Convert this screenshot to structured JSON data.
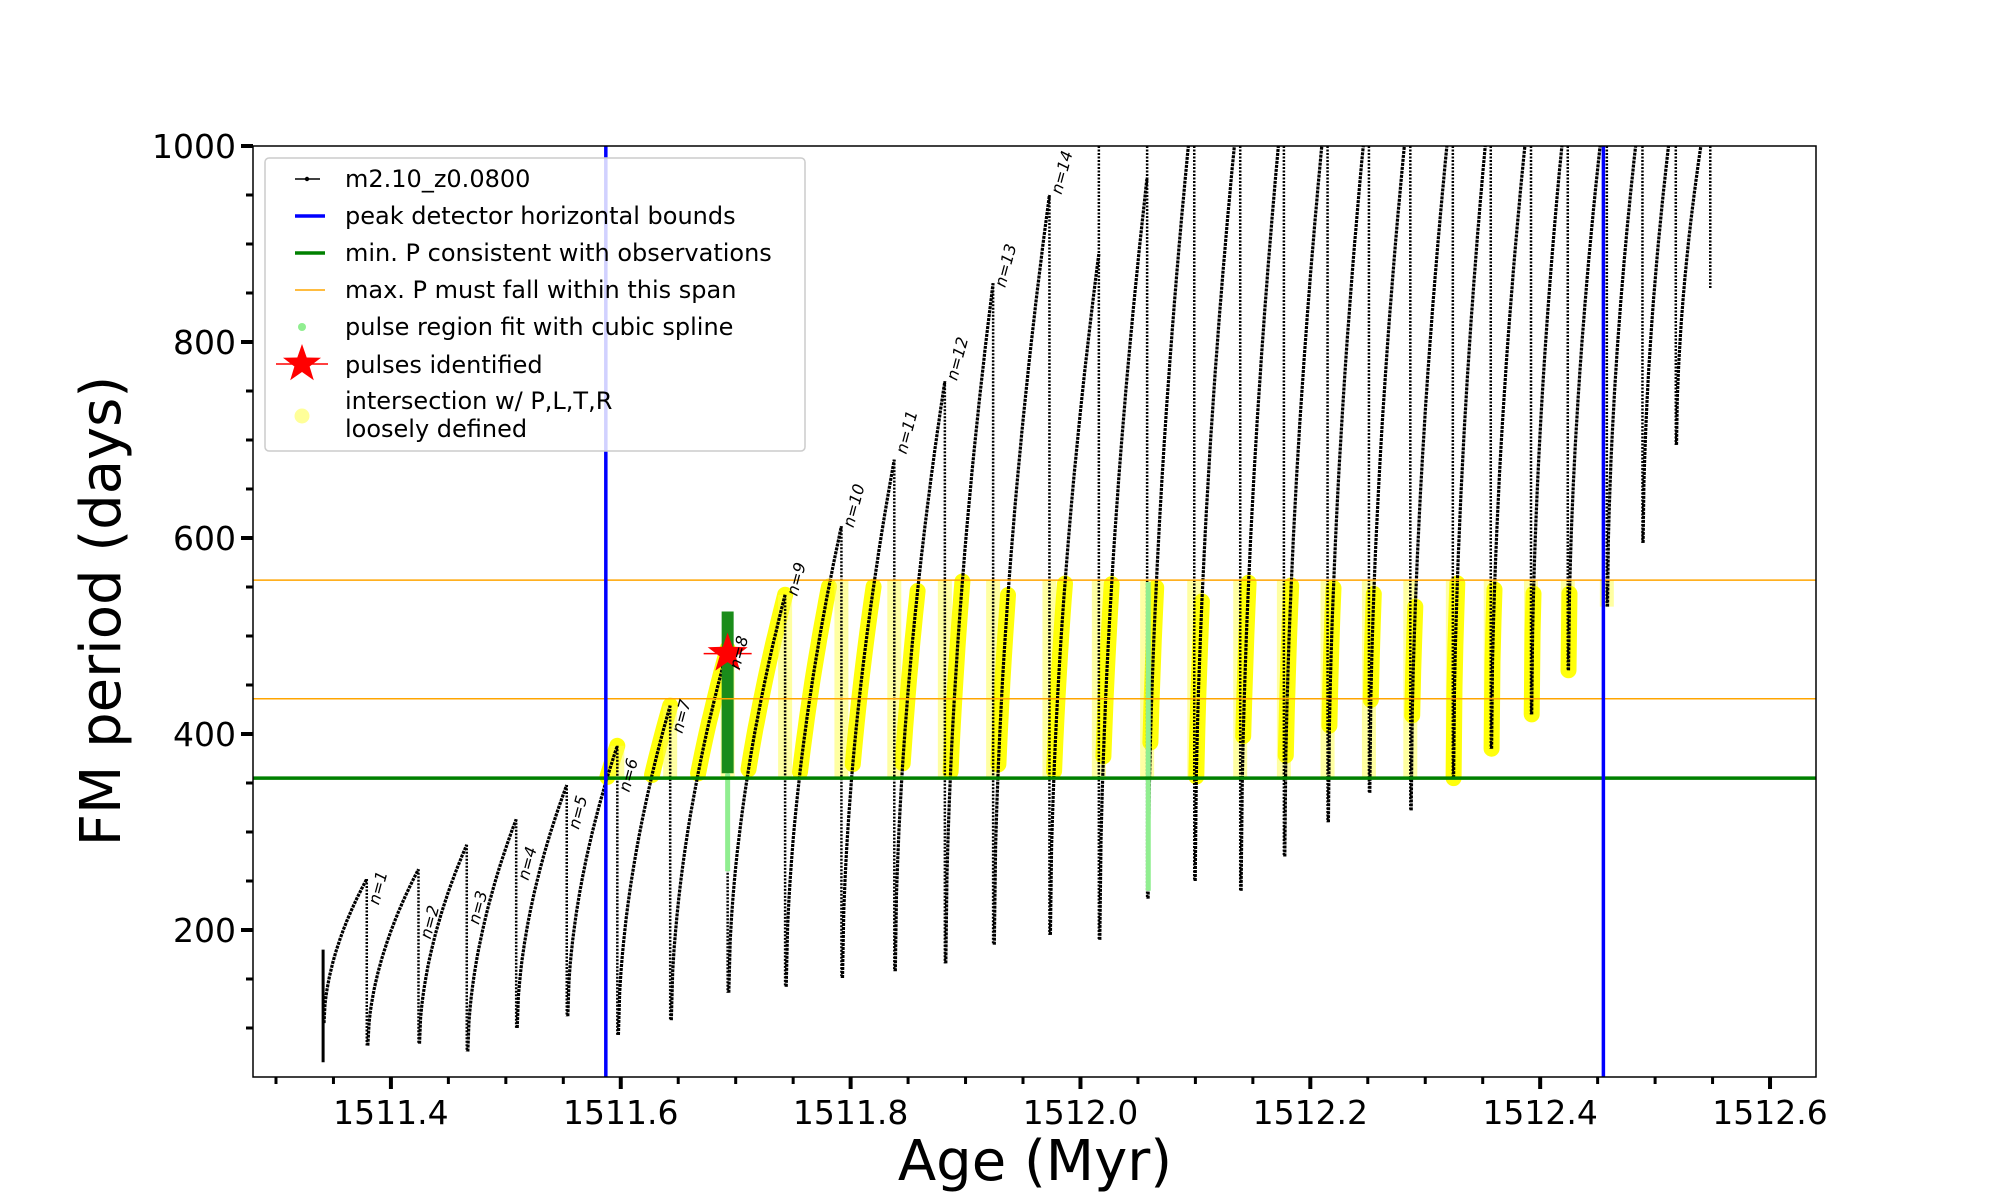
{
  "chart_data": {
    "type": "line",
    "xlabel": "Age (Myr)",
    "ylabel": "FM period (days)",
    "xlim": [
      1511.28,
      1512.64
    ],
    "ylim": [
      50,
      1000
    ],
    "x_ticks": [
      1511.4,
      1511.6,
      1511.8,
      1512.0,
      1512.2,
      1512.4,
      1512.6
    ],
    "x_tick_labels": [
      "1511.4",
      "1511.6",
      "1511.8",
      "1512.0",
      "1512.2",
      "1512.4",
      "1512.6"
    ],
    "y_ticks": [
      200,
      400,
      600,
      800,
      1000
    ],
    "y_tick_labels": [
      "200",
      "400",
      "600",
      "800",
      "1000"
    ],
    "grid": false,
    "legend_position": "top-left",
    "legend": [
      {
        "label": "m2.10_z0.0800",
        "kind": "line-marker",
        "color": "#000000"
      },
      {
        "label": "peak detector horizontal bounds",
        "kind": "line",
        "color": "#0000ff"
      },
      {
        "label": "min. P consistent with observations",
        "kind": "line",
        "color": "#008000"
      },
      {
        "label": "max. P must fall within this span",
        "kind": "line",
        "color": "#ffa500"
      },
      {
        "label": "pulse region fit with cubic spline",
        "kind": "dot",
        "color": "#90ee90"
      },
      {
        "label": "pulses identified",
        "kind": "star",
        "color": "#ff0000"
      },
      {
        "label": "intersection w/ P,L,T,R",
        "label2": "loosely defined",
        "kind": "dot-big",
        "color": "#ffff99"
      }
    ],
    "vertical_bounds": [
      1511.587,
      1512.455
    ],
    "min_period": 355,
    "max_period_span": [
      436,
      557
    ],
    "pulses": [
      {
        "x": 1511.379,
        "min": 82,
        "peak": 252,
        "label": "n=1",
        "label_y": 225
      },
      {
        "x": 1511.424,
        "min": 84,
        "peak": 262,
        "label": "n=2",
        "label_y": 190
      },
      {
        "x": 1511.466,
        "min": 76,
        "peak": 287,
        "label": "n=3",
        "label_y": 205
      },
      {
        "x": 1511.509,
        "min": 100,
        "peak": 313,
        "label": "n=4",
        "label_y": 250
      },
      {
        "x": 1511.553,
        "min": 112,
        "peak": 348,
        "label": "n=5",
        "label_y": 302
      },
      {
        "x": 1511.597,
        "min": 93,
        "peak": 388,
        "label": "n=6",
        "label_y": 340
      },
      {
        "x": 1511.643,
        "min": 108,
        "peak": 429,
        "label": "n=7",
        "label_y": 400
      },
      {
        "x": 1511.693,
        "min": 136,
        "peak": 487,
        "label": "n=8",
        "label_y": 465
      },
      {
        "x": 1511.743,
        "min": 142,
        "peak": 542,
        "label": "n=9",
        "label_y": 540
      },
      {
        "x": 1511.792,
        "min": 151,
        "peak": 612,
        "label": "n=10",
        "label_y": 610
      },
      {
        "x": 1511.838,
        "min": 158,
        "peak": 680,
        "label": "n=11",
        "label_y": 685
      },
      {
        "x": 1511.882,
        "min": 166,
        "peak": 760,
        "label": "n=12",
        "label_y": 760
      },
      {
        "x": 1511.924,
        "min": 185,
        "peak": 860,
        "label": "n=13",
        "label_y": 855
      },
      {
        "x": 1511.973,
        "min": 195,
        "peak": 950,
        "label": "n=14",
        "label_y": 950
      },
      {
        "x": 1512.016,
        "min": 190,
        "peak": 1000
      },
      {
        "x": 1512.058,
        "min": 232,
        "peak": 1000
      },
      {
        "x": 1512.099,
        "min": 250,
        "peak": 1000
      },
      {
        "x": 1512.139,
        "min": 240,
        "peak": 1000
      },
      {
        "x": 1512.177,
        "min": 275,
        "peak": 1000
      },
      {
        "x": 1512.215,
        "min": 310,
        "peak": 1000
      },
      {
        "x": 1512.251,
        "min": 340,
        "peak": 1000
      },
      {
        "x": 1512.287,
        "min": 322,
        "peak": 1000
      },
      {
        "x": 1512.324,
        "min": 355,
        "peak": 1000
      },
      {
        "x": 1512.357,
        "min": 385,
        "peak": 1000
      },
      {
        "x": 1512.392,
        "min": 420,
        "peak": 1000
      },
      {
        "x": 1512.424,
        "min": 465,
        "peak": 1000
      },
      {
        "x": 1512.458,
        "min": 530,
        "peak": 1000
      },
      {
        "x": 1512.489,
        "min": 595,
        "peak": 1000
      },
      {
        "x": 1512.518,
        "min": 695,
        "peak": 1000
      },
      {
        "x": 1512.548,
        "min": 855,
        "peak": 1000
      }
    ],
    "track_start": {
      "x": 1511.341,
      "top": 180,
      "bottom": 65
    },
    "tail_peaks": [
      {
        "x": 1512.016,
        "peak": 890
      },
      {
        "x": 1512.058,
        "peak": 968
      }
    ],
    "identified_pulse": {
      "x": 1511.693,
      "y": 482,
      "spline_top": 525,
      "spline_bottom": 260
    },
    "spline_secondary": {
      "x": 1512.059,
      "top": 555,
      "bottom": 240
    }
  }
}
